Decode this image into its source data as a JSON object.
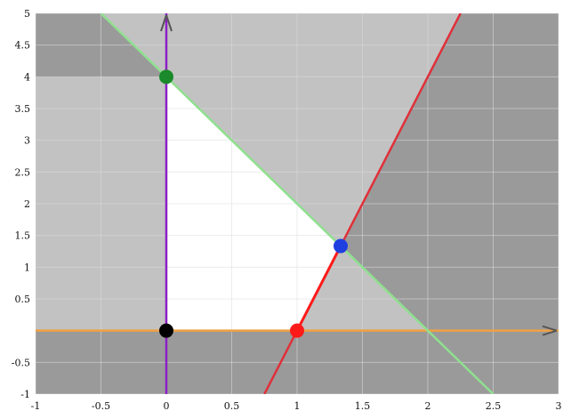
{
  "chart_data": {
    "type": "line",
    "title": "",
    "xlabel": "",
    "ylabel": "",
    "xlim": [
      -1,
      3
    ],
    "ylim": [
      -1,
      5
    ],
    "x_ticks": [
      {
        "value": -1,
        "label": "-1"
      },
      {
        "value": -0.5,
        "label": "-0.5"
      },
      {
        "value": 0,
        "label": "0"
      },
      {
        "value": 0.5,
        "label": "0.5"
      },
      {
        "value": 1,
        "label": "1"
      },
      {
        "value": 1.5,
        "label": "1.5"
      },
      {
        "value": 2,
        "label": "2"
      },
      {
        "value": 2.5,
        "label": "2.5"
      },
      {
        "value": 3,
        "label": "3"
      }
    ],
    "y_ticks": [
      {
        "value": -1,
        "label": "-1"
      },
      {
        "value": -0.5,
        "label": "-0.5"
      },
      {
        "value": 0.5,
        "label": "0.5"
      },
      {
        "value": 1,
        "label": "1"
      },
      {
        "value": 1.5,
        "label": "1.5"
      },
      {
        "value": 2,
        "label": "2"
      },
      {
        "value": 2.5,
        "label": "2.5"
      },
      {
        "value": 3,
        "label": "3"
      },
      {
        "value": 3.5,
        "label": "3.5"
      },
      {
        "value": 4,
        "label": "4"
      },
      {
        "value": 4.5,
        "label": "4.5"
      },
      {
        "value": 5,
        "label": "5"
      }
    ],
    "grid": true,
    "lines": [
      {
        "kind": "vertical",
        "x": 0,
        "color": "#8b1fc4",
        "arrow": true
      },
      {
        "kind": "horizontal",
        "y": 0,
        "color": "#f0a040",
        "arrow": true
      },
      {
        "kind": "line",
        "from": [
          -0.5,
          5
        ],
        "to": [
          2.5,
          -1
        ],
        "color": "#8fe08f"
      },
      {
        "kind": "line",
        "from": [
          0.75,
          -1
        ],
        "to": [
          2.25,
          5
        ],
        "color": "#e0303a",
        "highlight_from": [
          1,
          0
        ],
        "highlight_to": [
          1.3333,
          1.3333
        ],
        "highlight_color": "#ff1a1a"
      }
    ],
    "feasible_region": [
      [
        0,
        0
      ],
      [
        1,
        0
      ],
      [
        1.3333,
        1.3333
      ],
      [
        0,
        4
      ]
    ],
    "points": [
      {
        "x": 0,
        "y": 4,
        "color": "#1a8a2a"
      },
      {
        "x": 1.3333,
        "y": 1.3333,
        "color": "#1f3fe0"
      },
      {
        "x": 1,
        "y": 0,
        "color": "#ff1a1a"
      },
      {
        "x": 0,
        "y": 0,
        "color": "#000000"
      }
    ],
    "colors": {
      "page_background": "#ffffff",
      "shade_outside": "#c2c2c2",
      "shade_double": "#9a9a9a",
      "feasible": "#ffffff",
      "grid": "#dddddd"
    }
  }
}
